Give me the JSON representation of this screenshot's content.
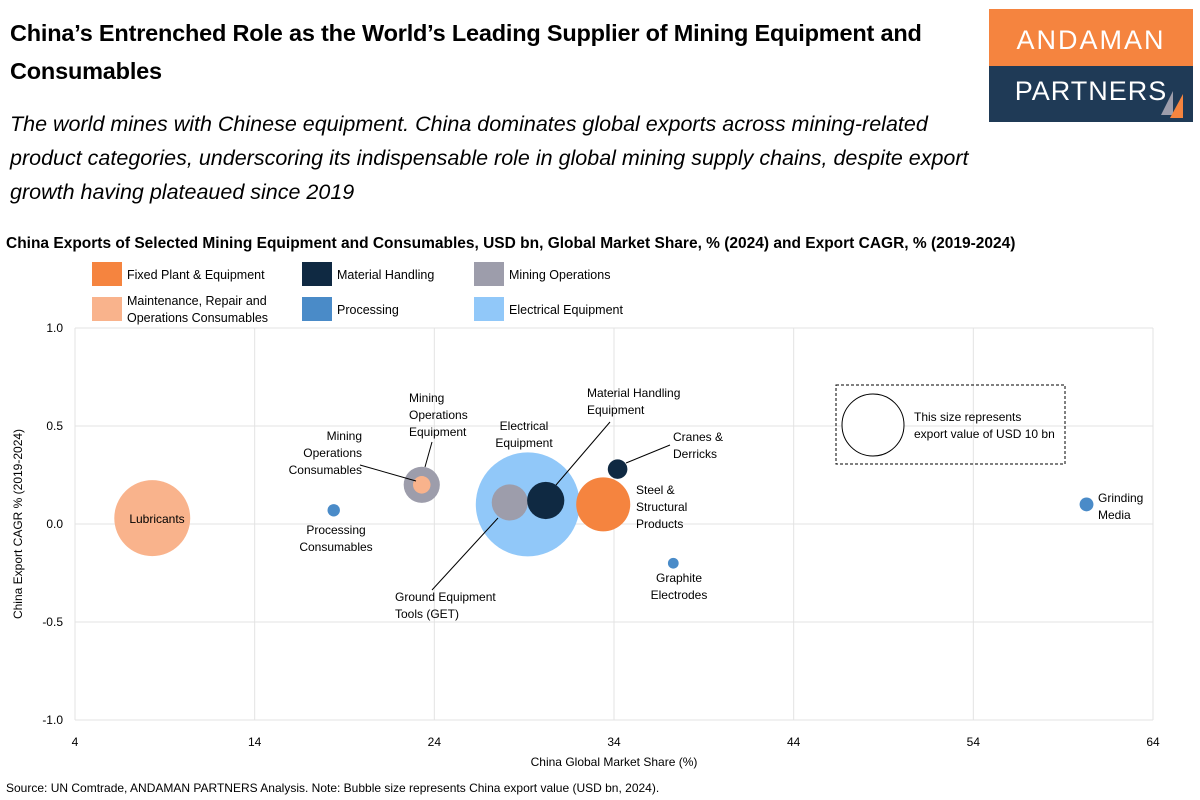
{
  "header": {
    "title": "China’s Entrenched Role as the World’s Leading Supplier of Mining Equipment and Consumables",
    "subtitle": "The world mines with Chinese equipment. China dominates global exports across mining-related product categories, underscoring its indispensable role in global mining supply chains, despite export growth having plateaued since 2019"
  },
  "logo": {
    "line1": "ANDAMAN",
    "line2": "PARTNERS",
    "colors": {
      "top": "#f5843f",
      "bottom": "#1f3a56"
    }
  },
  "source": "Source: UN Comtrade, ANDAMAN PARTNERS Analysis. Note: Bubble size represents China export value (USD bn, 2024).",
  "chart_data": {
    "type": "scatter",
    "title": "China Exports of Selected Mining Equipment and Consumables, USD bn, Global Market Share, % (2024) and Export CAGR, % (2019-2024)",
    "xlabel": "China Global Market Share (%)",
    "ylabel": "China Export CAGR % (2019-2024)",
    "xlim": [
      4,
      64
    ],
    "ylim": [
      -1.0,
      1.0
    ],
    "xticks": [
      "4",
      "14",
      "24",
      "34",
      "44",
      "54",
      "64"
    ],
    "yticks": [
      "1.0",
      "0.5",
      "0.0",
      "-0.5",
      "-1.0"
    ],
    "grid": true,
    "legend_position": "top-left",
    "categories": [
      {
        "name": "Fixed Plant & Equipment",
        "color": "#f5843f"
      },
      {
        "name": "Material Handling",
        "color": "#0f2942"
      },
      {
        "name": "Mining Operations",
        "color": "#9d9dab"
      },
      {
        "name": "Maintenance, Repair and Operations Consumables",
        "color": "#f9b38c"
      },
      {
        "name": "Processing",
        "color": "#4a8bc8"
      },
      {
        "name": "Electrical Equipment",
        "color": "#91c8f9"
      }
    ],
    "size_legend": {
      "value": 10,
      "text": "This size represents export value of USD 10 bn"
    },
    "points": [
      {
        "label": "Lubricants",
        "category": 3,
        "x": 8.3,
        "y": 0.03,
        "size": 15.0
      },
      {
        "label": "Electrical Equipment",
        "category": 5,
        "x": 29.2,
        "y": 0.1,
        "size": 28.1
      },
      {
        "label": "Steel & Structural Products",
        "category": 0,
        "x": 33.4,
        "y": 0.1,
        "size": 7.6
      },
      {
        "label": "Ground Equipment Tools (GET)",
        "category": 2,
        "x": 28.2,
        "y": 0.11,
        "size": 3.4
      },
      {
        "label": "Material Handling Equipment",
        "category": 1,
        "x": 30.2,
        "y": 0.12,
        "size": 3.6
      },
      {
        "label": "Mining Operations Equipment",
        "category": 2,
        "x": 23.3,
        "y": 0.2,
        "size": 3.4
      },
      {
        "label": "Mining Operations Consumables",
        "category": 3,
        "x": 23.3,
        "y": 0.2,
        "size": 0.8
      },
      {
        "label": "Cranes & Derricks",
        "category": 1,
        "x": 34.2,
        "y": 0.28,
        "size": 1.0
      },
      {
        "label": "Processing Consumables",
        "category": 4,
        "x": 18.4,
        "y": 0.07,
        "size": 0.4
      },
      {
        "label": "Graphite Electrodes",
        "category": 4,
        "x": 37.3,
        "y": -0.2,
        "size": 0.3
      },
      {
        "label": "Grinding Media",
        "category": 4,
        "x": 60.3,
        "y": 0.1,
        "size": 0.5
      }
    ]
  }
}
